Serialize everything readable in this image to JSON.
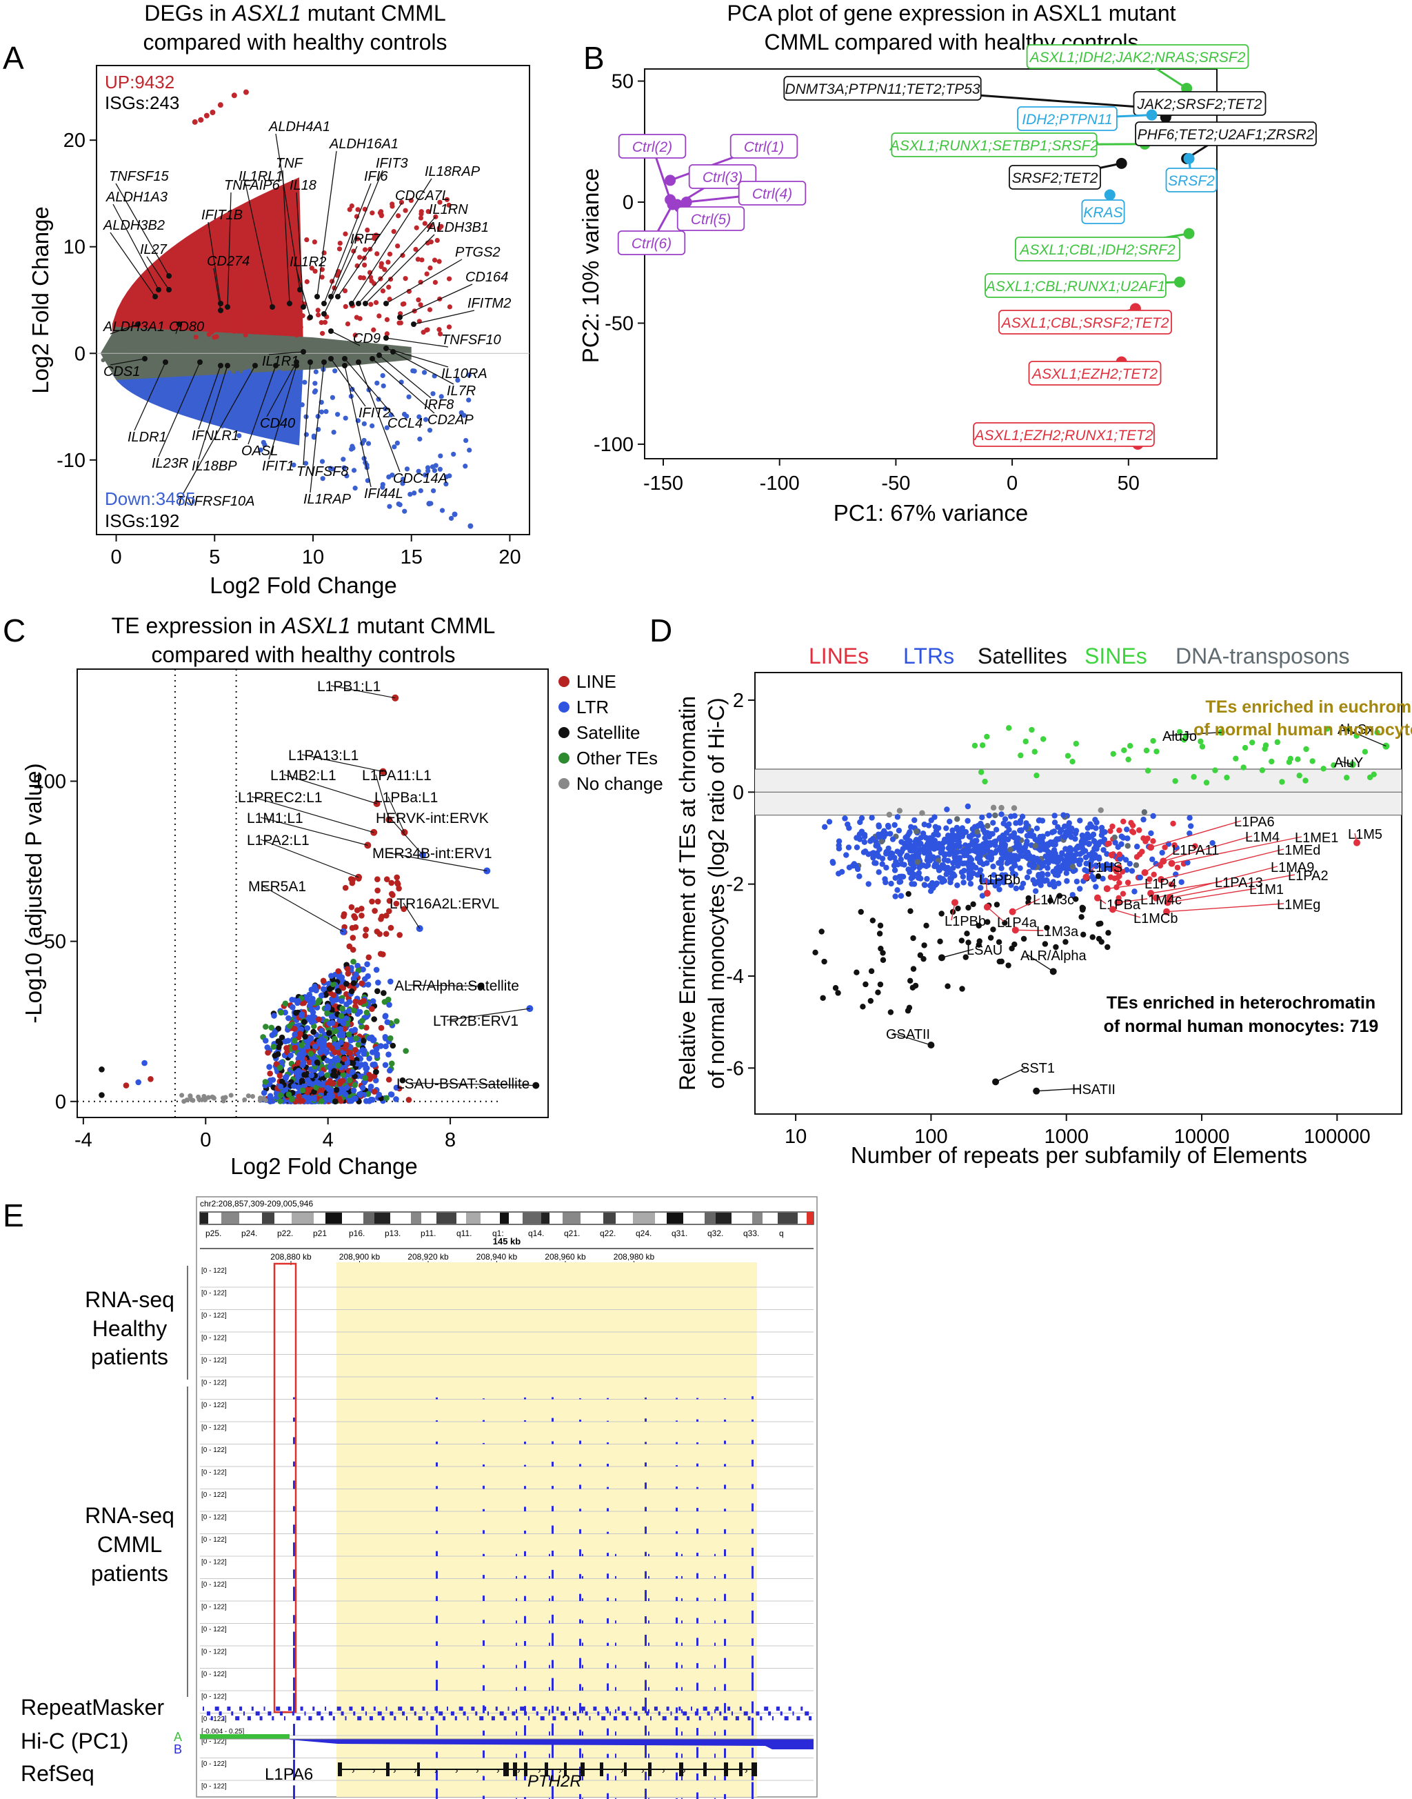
{
  "panel_letters": [
    "A",
    "B",
    "C",
    "D",
    "E"
  ],
  "chart_data": [
    {
      "id": "A",
      "type": "scatter",
      "title_lines": [
        "DEGs in ASXL1 mutant CMML",
        "compared with healthy controls"
      ],
      "title_italic": "ASXL1",
      "xlabel": "Log2 Fold Change",
      "ylabel": "Log2 Fold Change",
      "xlim": [
        -1,
        21
      ],
      "ylim": [
        -17,
        27
      ],
      "xticks": [
        0,
        5,
        10,
        15,
        20
      ],
      "yticks": [
        -10,
        0,
        10,
        20
      ],
      "up_text": "UP:9432",
      "up_isg": "ISGs:243",
      "down_text": "Down:3485",
      "down_isg": "ISGs:192",
      "colors": {
        "up": "#c0272d",
        "down": "#3a5fd0",
        "ns": "#5f6b5f"
      },
      "labels_up": [
        "ALDH4A1",
        "ALDH16A1",
        "TNFAIP6",
        "TNF",
        "IFI6",
        "IFIT3",
        "IL18RAP",
        "TNFSF15",
        "IL1RL1",
        "CDCA7L",
        "IL1RN",
        "ALDH1A3",
        "IFIT1B",
        "IL18",
        "ALDH3B1",
        "ALDH3B2",
        "IL27",
        "IRF7",
        "PTGS2",
        "CD274",
        "IL1R2",
        "CD164",
        "IFITM2",
        "ALDH3A1",
        "CD80",
        "CD9",
        "TNFSF10"
      ],
      "labels_down": [
        "IL1R1",
        "IL10RA",
        "IL7R",
        "IRF8",
        "CDS1",
        "CD2AP",
        "IFIT2",
        "CD40",
        "ILDR1",
        "IFNLR1",
        "CCL4",
        "OASL",
        "IL23R",
        "IL18BP",
        "IFIT1",
        "TNFSF8",
        "CDC14A",
        "IFI44L",
        "TNFRSF10A",
        "IL1RAP"
      ]
    },
    {
      "id": "B",
      "type": "scatter",
      "title_lines": [
        "PCA plot of gene expression in ASXL1 mutant",
        "CMML compared with healthy controls"
      ],
      "xlabel": "PC1: 67% variance",
      "ylabel": "PC2: 10% variance",
      "xlim": [
        -158,
        88
      ],
      "ylim": [
        -106,
        55
      ],
      "xticks": [
        -150,
        -100,
        -50,
        0,
        50
      ],
      "yticks": [
        -100,
        -50,
        0,
        50
      ],
      "points": [
        {
          "label": "Ctrl(1)",
          "x": -147,
          "y": 9,
          "group": "ctrl"
        },
        {
          "label": "Ctrl(2)",
          "x": -147,
          "y": 1,
          "group": "ctrl"
        },
        {
          "label": "Ctrl(3)",
          "x": -144,
          "y": -1,
          "group": "ctrl"
        },
        {
          "label": "Ctrl(4)",
          "x": -140,
          "y": 0,
          "group": "ctrl"
        },
        {
          "label": "Ctrl(5)",
          "x": -143,
          "y": -2,
          "group": "ctrl"
        },
        {
          "label": "Ctrl(6)",
          "x": -146,
          "y": -1,
          "group": "ctrl"
        },
        {
          "label": "ASXL1;IDH2;JAK2;NRAS;SRSF2",
          "x": 75,
          "y": 47,
          "group": "green"
        },
        {
          "label": "DNMT3A;PTPN11;TET2;TP53",
          "x": 59,
          "y": 39,
          "group": "black"
        },
        {
          "label": "JAK2;SRSF2;TET2",
          "x": 66,
          "y": 35,
          "group": "black"
        },
        {
          "label": "IDH2;PTPN11",
          "x": 60,
          "y": 36,
          "group": "blue"
        },
        {
          "label": "ASXL1;RUNX1;SETBP1;SRSF2",
          "x": 57,
          "y": 24,
          "group": "green"
        },
        {
          "label": "PHF6;TET2;U2AF1;ZRSR2",
          "x": 75,
          "y": 18,
          "group": "black"
        },
        {
          "label": "SRSF2",
          "x": 76,
          "y": 18,
          "group": "blue"
        },
        {
          "label": "SRSF2;TET2",
          "x": 47,
          "y": 16,
          "group": "black"
        },
        {
          "label": "KRAS",
          "x": 42,
          "y": 3,
          "group": "blue"
        },
        {
          "label": "ASXL1;CBL;IDH2;SRF2",
          "x": 76,
          "y": -13,
          "group": "green"
        },
        {
          "label": "ASXL1;CBL;RUNX1;U2AF1",
          "x": 72,
          "y": -33,
          "group": "green"
        },
        {
          "label": "ASXL1;CBL;SRSF2;TET2",
          "x": 53,
          "y": -44,
          "group": "red"
        },
        {
          "label": "ASXL1;EZH2;TET2",
          "x": 47,
          "y": -66,
          "group": "red"
        },
        {
          "label": "ASXL1;EZH2;RUNX1;TET2",
          "x": 54,
          "y": -100,
          "group": "red"
        }
      ],
      "colors": {
        "ctrl": "#9b3ec8",
        "green": "#3ec43e",
        "black": "#111111",
        "blue": "#2aa8e0",
        "red": "#e0303e"
      }
    },
    {
      "id": "C",
      "type": "scatter",
      "title_lines": [
        "TE expression in ASXL1 mutant CMML",
        "compared with healthy controls"
      ],
      "title_italic": "ASXL1",
      "xlabel": "Log2 Fold Change",
      "ylabel": "-Log10 (adjusted P value)",
      "xlim": [
        -4.2,
        11.2
      ],
      "ylim": [
        -5,
        135
      ],
      "xticks": [
        -4,
        0,
        4,
        8
      ],
      "yticks": [
        0,
        50,
        100
      ],
      "thresholds_x": [
        -1,
        1
      ],
      "legend": [
        {
          "name": "LINE",
          "color": "#b5221f"
        },
        {
          "name": "LTR",
          "color": "#2f55e0"
        },
        {
          "name": "Satellite",
          "color": "#111111"
        },
        {
          "name": "Other TEs",
          "color": "#2e8a2e"
        },
        {
          "name": "No change",
          "color": "#888888"
        }
      ],
      "labeled": [
        {
          "label": "L1PB1:L1",
          "x": 6.2,
          "y": 126
        },
        {
          "label": "L1PA13:L1",
          "x": 5.8,
          "y": 103
        },
        {
          "label": "L1MB2:L1",
          "x": 5.6,
          "y": 93
        },
        {
          "label": "L1PA11:L1",
          "x": 6.0,
          "y": 88
        },
        {
          "label": "L1PREC2:L1",
          "x": 5.5,
          "y": 84
        },
        {
          "label": "L1PBa:L1",
          "x": 6.5,
          "y": 84
        },
        {
          "label": "L1M1:L1",
          "x": 5.3,
          "y": 80
        },
        {
          "label": "HERVK-int:ERVK",
          "x": 7.1,
          "y": 77
        },
        {
          "label": "L1PA2:L1",
          "x": 5.0,
          "y": 70
        },
        {
          "label": "MER34B-int:ERV1",
          "x": 9.2,
          "y": 72
        },
        {
          "label": "MER5A1",
          "x": 4.5,
          "y": 53
        },
        {
          "label": "LTR16A2L:ERVL",
          "x": 7.0,
          "y": 54
        },
        {
          "label": "ALR/Alpha:Satellite",
          "x": 9.0,
          "y": 36
        },
        {
          "label": "LTR2B:ERV1",
          "x": 10.6,
          "y": 29
        },
        {
          "label": "LSAU-BSAT:Satellite",
          "x": 10.8,
          "y": 5
        }
      ]
    },
    {
      "id": "D",
      "type": "scatter",
      "xscale": "log",
      "legend_title": [
        "LINEs",
        "LTRs",
        "Satellites",
        "SINEs",
        "DNA-transposons"
      ],
      "legend_colors": [
        "#e0303e",
        "#2f55e0",
        "#111111",
        "#3ed43e",
        "#5f6b70"
      ],
      "xlabel": "Number of repeats per subfamily of Elements",
      "ylabel_lines": [
        "Relative Enrichment of TEs at chromatin",
        "of normal monocytes (log2 ratio of Hi-C)"
      ],
      "xlim": [
        5,
        300000
      ],
      "ylim": [
        -7,
        2.6
      ],
      "xticks": [
        10,
        100,
        1000,
        10000,
        100000
      ],
      "xtick_labels": [
        "10",
        "100",
        "1000",
        "10000",
        "100000"
      ],
      "yticks": [
        -6,
        -4,
        -2,
        0,
        2
      ],
      "band": [
        -0.5,
        0.5
      ],
      "euchromatin_text": [
        "TEs enriched in euchromatin",
        "of normal human monocytes:54"
      ],
      "heterochromatin_text": [
        "TEs enriched in heterochromatin",
        "of normal human monocytes: 719"
      ],
      "labeled": [
        {
          "label": "AluJo",
          "x": 14000,
          "y": 1.3
        },
        {
          "label": "AluSx",
          "x": 230000,
          "y": 1.0
        },
        {
          "label": "AluY",
          "x": 130000,
          "y": 0.6
        },
        {
          "label": "L1PA6",
          "x": 4200,
          "y": -1.2
        },
        {
          "label": "L1M5",
          "x": 140000,
          "y": -1.1
        },
        {
          "label": "L1M4",
          "x": 5200,
          "y": -1.5
        },
        {
          "label": "L1ME1",
          "x": 6000,
          "y": -1.55
        },
        {
          "label": "L1PA11",
          "x": 3800,
          "y": -1.75
        },
        {
          "label": "L1MEd",
          "x": 5000,
          "y": -1.9
        },
        {
          "label": "L1MA9",
          "x": 4600,
          "y": -2.3
        },
        {
          "label": "L1HS",
          "x": 1400,
          "y": -1.85
        },
        {
          "label": "L1PA2",
          "x": 5800,
          "y": -2.3
        },
        {
          "label": "L1PA13",
          "x": 4200,
          "y": -2.2
        },
        {
          "label": "L1PBb",
          "x": 260,
          "y": -2.2
        },
        {
          "label": "L1P4",
          "x": 2000,
          "y": -2.1
        },
        {
          "label": "L1M1",
          "x": 5600,
          "y": -2.4
        },
        {
          "label": "L1MEg",
          "x": 5500,
          "y": -2.6
        },
        {
          "label": "L1M3c",
          "x": 400,
          "y": -2.6
        },
        {
          "label": "L1M4c",
          "x": 2400,
          "y": -2.4
        },
        {
          "label": "L1PBa",
          "x": 1700,
          "y": -2.3
        },
        {
          "label": "L1MCb",
          "x": 2200,
          "y": -2.55
        },
        {
          "label": "L1PBb",
          "x": 150,
          "y": -2.4
        },
        {
          "label": "L1P4a",
          "x": 260,
          "y": -2.5
        },
        {
          "label": "L1M3a",
          "x": 420,
          "y": -3.0
        },
        {
          "label": "LSAU",
          "x": 120,
          "y": -3.6
        },
        {
          "label": "ALR/Alpha",
          "x": 800,
          "y": -3.9
        },
        {
          "label": "GSATII",
          "x": 100,
          "y": -5.5
        },
        {
          "label": "SST1",
          "x": 300,
          "y": -6.3
        },
        {
          "label": "HSATII",
          "x": 600,
          "y": -6.5
        }
      ]
    }
  ],
  "panel_e": {
    "locus": "chr2:208,857,309-209,005,946",
    "scale": "145 kb",
    "bands": [
      "p25.",
      "p24.",
      "p22.",
      "p21",
      "p16.",
      "p13.",
      "p11.",
      "q11.",
      "q1:",
      "q14.",
      "q21.",
      "q22.",
      "q24.",
      "q31.",
      "q32.",
      "q33.",
      "q"
    ],
    "coords": [
      "208,880 kb",
      "208,900 kb",
      "208,920 kb",
      "208,940 kb",
      "208,960 kb",
      "208,980 kb"
    ],
    "range_text": "[0 - 122]",
    "hic_range": "[-0.004 - 0.25]",
    "healthy_tracks": 5,
    "cmml_tracks": 20,
    "labels": {
      "healthy": [
        "RNA-seq",
        "Healthy",
        "patients"
      ],
      "cmml": [
        "RNA-seq",
        "CMML",
        "patients"
      ],
      "repeatmasker": "RepeatMasker",
      "hic": "Hi-C (PC1)",
      "refseq": "RefSeq",
      "hic_a": "A",
      "hic_b": "B",
      "l1pa6": "L1PA6",
      "gene": "PTH2R"
    }
  }
}
